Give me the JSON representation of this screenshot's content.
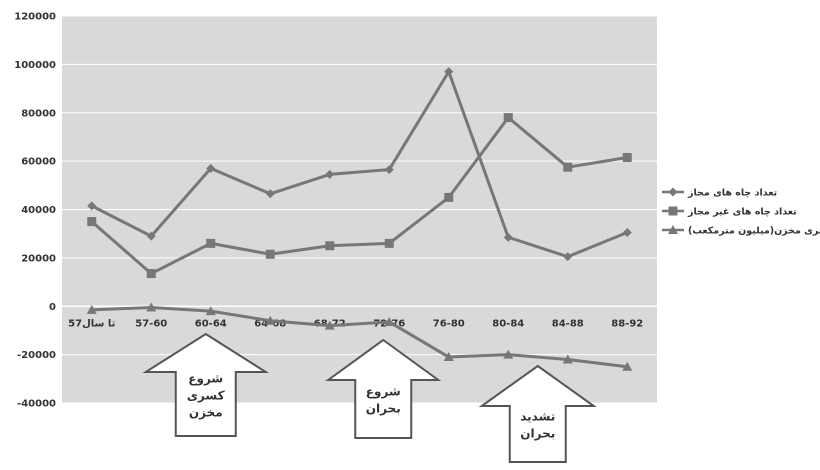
{
  "chart_data": {
    "type": "line",
    "title": "",
    "xlabel": "",
    "ylabel": "",
    "categories": [
      "57تا سال",
      "57-60",
      "60-64",
      "64-68",
      "68-72",
      "72-76",
      "76-80",
      "80-84",
      "84-88",
      "88-92"
    ],
    "ylim": [
      -40000,
      120000
    ],
    "yticks": [
      -40000,
      -20000,
      0,
      20000,
      40000,
      60000,
      80000,
      100000,
      120000
    ],
    "grid": true,
    "legend_position": "right",
    "series": [
      {
        "name": "تعداد چاه های مجاز",
        "marker": "diamond",
        "values": [
          41500,
          29000,
          57000,
          46500,
          54500,
          56500,
          97000,
          28500,
          20500,
          30500
        ]
      },
      {
        "name": "تعداد چاه های غیر مجاز",
        "marker": "square",
        "values": [
          35000,
          13500,
          26000,
          21500,
          25000,
          26000,
          45000,
          78000,
          57500,
          61500
        ]
      },
      {
        "name": "(میلیون مترمکعب)کسری مخزن",
        "marker": "triangle",
        "values": [
          -1500,
          -500,
          -2000,
          -6000,
          -8000,
          -6500,
          -21000,
          -20000,
          -22000,
          -25000
        ]
      }
    ],
    "annotations": [
      {
        "text": [
          "شروع",
          "کسری",
          "مخزن"
        ],
        "category": "60-64"
      },
      {
        "text": [
          "شروع",
          "بحران"
        ],
        "category": "72-76"
      },
      {
        "text": [
          "تشدید",
          "بحران"
        ],
        "category": "84-88"
      }
    ]
  },
  "colors": {
    "plot_bg": "#d9d9d9",
    "line": "#777777",
    "grid": "#ffffff",
    "text": "#333333",
    "arrow_fill": "#ffffff",
    "arrow_stroke": "#555555"
  }
}
